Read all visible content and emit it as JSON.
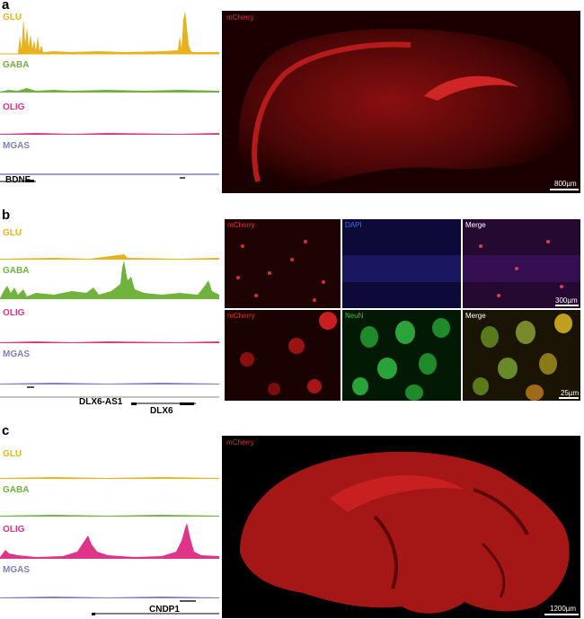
{
  "panels": [
    {
      "letter": "a",
      "tracks": [
        {
          "label": "GLU",
          "color": "#e8b21f"
        },
        {
          "label": "GABA",
          "color": "#6fb23c"
        },
        {
          "label": "OLIG",
          "color": "#e0338a"
        },
        {
          "label": "MGAS",
          "color": "#7f7fc0"
        }
      ],
      "genes": [
        "BDNF"
      ],
      "images": [
        {
          "channel": "mCherry",
          "channel_color": "#e0302a",
          "scale": "800µm"
        }
      ]
    },
    {
      "letter": "b",
      "tracks": [
        {
          "label": "GLU",
          "color": "#e8b21f"
        },
        {
          "label": "GABA",
          "color": "#6fb23c"
        },
        {
          "label": "OLIG",
          "color": "#e0338a"
        },
        {
          "label": "MGAS",
          "color": "#7f7fc0"
        }
      ],
      "genes": [
        "DLX6-AS1",
        "DLX6"
      ],
      "images": [
        {
          "channel": "mCherry",
          "channel_color": "#e0302a"
        },
        {
          "channel": "DAPI",
          "channel_color": "#3b6fe0"
        },
        {
          "channel": "Merge",
          "channel_color": "#ffffff",
          "scale": "300µm"
        },
        {
          "channel": "mCherry",
          "channel_color": "#e0302a"
        },
        {
          "channel": "NeuN",
          "channel_color": "#3cc13c"
        },
        {
          "channel": "Merge",
          "channel_color": "#ffffff",
          "scale": "25µm"
        }
      ]
    },
    {
      "letter": "c",
      "tracks": [
        {
          "label": "GLU",
          "color": "#e8b21f"
        },
        {
          "label": "GABA",
          "color": "#6fb23c"
        },
        {
          "label": "OLIG",
          "color": "#e0338a"
        },
        {
          "label": "MGAS",
          "color": "#7f7fc0"
        }
      ],
      "genes": [
        "CNDP1"
      ],
      "images": [
        {
          "channel": "mCherry",
          "channel_color": "#e0302a",
          "scale": "1200µm"
        }
      ]
    }
  ]
}
